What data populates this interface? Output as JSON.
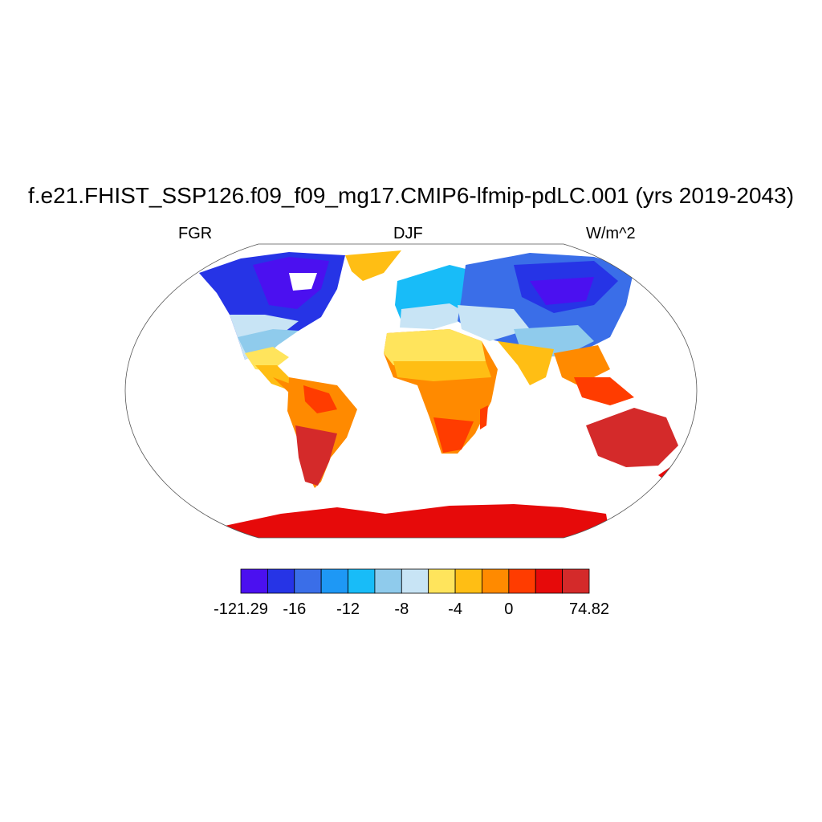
{
  "title": "f.e21.FHIST_SSP126.f09_f09_mg17.CMIP6-lfmip-pdLC.001 (yrs 2019-2043)",
  "variable": "FGR",
  "season": "DJF",
  "units": "W/m^2",
  "colorbar": {
    "tick_labels": [
      "-121.29",
      "-16",
      "-12",
      "-8",
      "-4",
      "0",
      "74.82"
    ],
    "colors": [
      "#4b10f0",
      "#2634e6",
      "#3a6ee8",
      "#1e98f5",
      "#18bcf8",
      "#8fcbec",
      "#c8e4f5",
      "#ffe45c",
      "#ffbe14",
      "#ff8a00",
      "#ff3c00",
      "#e60a0a",
      "#d42a2a"
    ]
  },
  "colors": {
    "ocean": "#ffffff",
    "outline": "#333333"
  }
}
